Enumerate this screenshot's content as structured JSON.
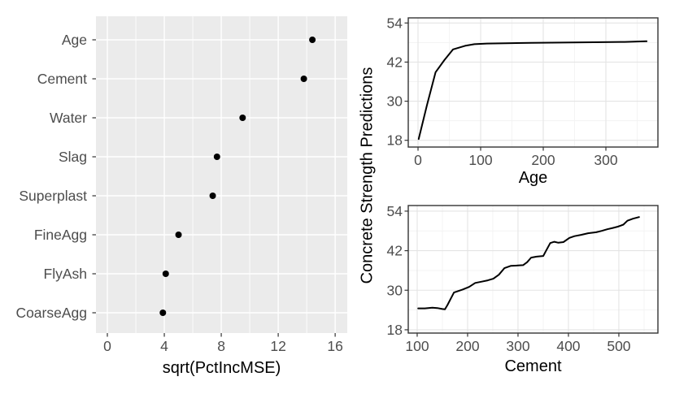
{
  "figure": {
    "shared_ylabel": "Concrete Strength Predictions"
  },
  "colors": {
    "panel_gray": "#EBEBEB",
    "panel_white": "#FFFFFF",
    "grid_white": "#FFFFFF",
    "grid_major": "#E4E4E4",
    "grid_minor": "#F3F3F3",
    "border": "#333333",
    "tick": "#333333",
    "axis_text": "#4D4D4D",
    "title_text": "#000000",
    "point": "#000000",
    "line": "#000000"
  },
  "chart_data": [
    {
      "id": "importance",
      "type": "scatter",
      "title": "",
      "xlabel": "sqrt(PctIncMSE)",
      "ylabel": "",
      "categories": [
        "Age",
        "Cement",
        "Water",
        "Slag",
        "Superplast",
        "FineAgg",
        "FlyAsh",
        "CoarseAgg"
      ],
      "values": [
        14.4,
        13.8,
        9.5,
        7.7,
        7.4,
        5.0,
        4.1,
        3.9
      ],
      "xticks": [
        0,
        4,
        8,
        12,
        16
      ],
      "xminor": [
        2,
        6,
        10,
        14
      ],
      "xlim": [
        -0.8,
        16.85
      ],
      "grid": "on",
      "legend": "none",
      "theme": "gray"
    },
    {
      "id": "age_pdp",
      "type": "line",
      "title": "",
      "xlabel": "Age",
      "ylabel": "Concrete Strength Predictions",
      "x": [
        1,
        14,
        28,
        42,
        56,
        75,
        90,
        110,
        140,
        180,
        230,
        280,
        330,
        365
      ],
      "y": [
        18.4,
        28.6,
        38.9,
        42.6,
        45.9,
        47.0,
        47.5,
        47.7,
        47.8,
        47.9,
        48.0,
        48.1,
        48.2,
        48.4
      ],
      "xticks": [
        0,
        100,
        200,
        300
      ],
      "xminor": [
        50,
        150,
        250,
        350
      ],
      "yticks": [
        18,
        30,
        42,
        54
      ],
      "yminor": [
        24,
        36,
        48
      ],
      "xlim": [
        -15.6,
        383.1
      ],
      "ylim": [
        15.93,
        55.57
      ],
      "grid": "on",
      "legend": "none",
      "theme": "bw"
    },
    {
      "id": "cement_pdp",
      "type": "line",
      "title": "",
      "xlabel": "Cement",
      "ylabel": "Concrete Strength Predictions",
      "x": [
        102,
        115,
        130,
        140,
        150,
        155,
        160,
        173,
        190,
        203,
        215,
        228,
        240,
        251,
        262,
        273,
        286,
        300,
        310,
        318,
        326,
        337,
        350,
        356,
        364,
        372,
        380,
        390,
        402,
        412,
        425,
        439,
        455,
        466,
        477,
        488,
        498,
        509,
        517,
        528,
        540
      ],
      "y": [
        24.5,
        24.5,
        24.7,
        24.6,
        24.3,
        24.2,
        25.5,
        29.3,
        30.2,
        31.0,
        32.2,
        32.6,
        33.0,
        33.5,
        34.7,
        36.7,
        37.4,
        37.5,
        37.6,
        38.5,
        39.9,
        40.2,
        40.4,
        42.1,
        44.3,
        44.7,
        44.4,
        44.6,
        45.9,
        46.4,
        46.8,
        47.3,
        47.6,
        48.0,
        48.5,
        48.9,
        49.3,
        49.9,
        51.1,
        51.7,
        52.2
      ],
      "xticks": [
        100,
        200,
        300,
        400,
        500
      ],
      "xminor": [
        150,
        250,
        350,
        450,
        550
      ],
      "yticks": [
        18,
        30,
        42,
        54
      ],
      "yminor": [
        24,
        36,
        48
      ],
      "xlim": [
        82.3,
        577.5
      ],
      "ylim": [
        17.0,
        55.7
      ],
      "grid": "on",
      "legend": "none",
      "theme": "bw"
    }
  ]
}
